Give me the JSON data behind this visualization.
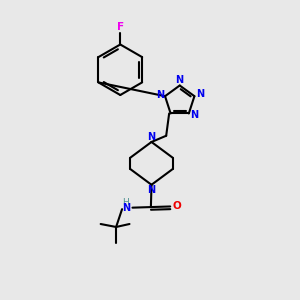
{
  "bg_color": "#e8e8e8",
  "bond_color": "#000000",
  "N_color": "#0000ee",
  "O_color": "#ee0000",
  "F_color": "#ee00ee",
  "H_color": "#4a8f8f",
  "line_width": 1.5,
  "figsize": [
    3.0,
    3.0
  ],
  "dpi": 100,
  "xlim": [
    0,
    10
  ],
  "ylim": [
    0,
    10
  ]
}
